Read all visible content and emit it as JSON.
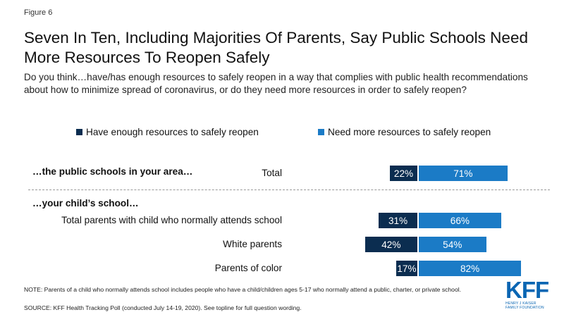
{
  "figure_label": "Figure 6",
  "title": "Seven In Ten, Including Majorities Of Parents, Say Public Schools Need More Resources To Reopen Safely",
  "subtitle": "Do you think…have/has enough resources to safely reopen in a way that complies with public health recommendations about how to minimize spread of coronavirus, or do they need more resources in order to safely reopen?",
  "colors": {
    "have_enough": "#0b2d50",
    "need_more": "#1b7bc6"
  },
  "chart_data": {
    "type": "bar",
    "orientation": "horizontal-diverging",
    "legend": [
      "Have enough resources to safely reopen",
      "Need more resources to safely reopen"
    ],
    "sections": [
      {
        "label": "…the public schools in your area…",
        "categories": [
          "Total"
        ]
      },
      {
        "label": "…your child’s school…",
        "categories": [
          "Total parents with child who normally attends school",
          "White parents",
          "Parents of color"
        ]
      }
    ],
    "categories": [
      "Total",
      "Total parents with child who normally attends school",
      "White parents",
      "Parents of color"
    ],
    "series": [
      {
        "name": "Have enough resources to safely reopen",
        "values": [
          22,
          31,
          42,
          17
        ]
      },
      {
        "name": "Need more resources to safely reopen",
        "values": [
          71,
          66,
          54,
          82
        ]
      }
    ],
    "value_suffix": "%"
  },
  "note": "NOTE: Parents of a child who normally attends school includes people who have a child/children ages 5-17 who normally attend a public, charter, or private school.",
  "source": "SOURCE: KFF Health Tracking Poll (conducted July 14-19, 2020). See topline for full question wording.",
  "logo": {
    "main": "KFF",
    "sub1": "HENRY J KAISER",
    "sub2": "FAMILY FOUNDATION"
  }
}
